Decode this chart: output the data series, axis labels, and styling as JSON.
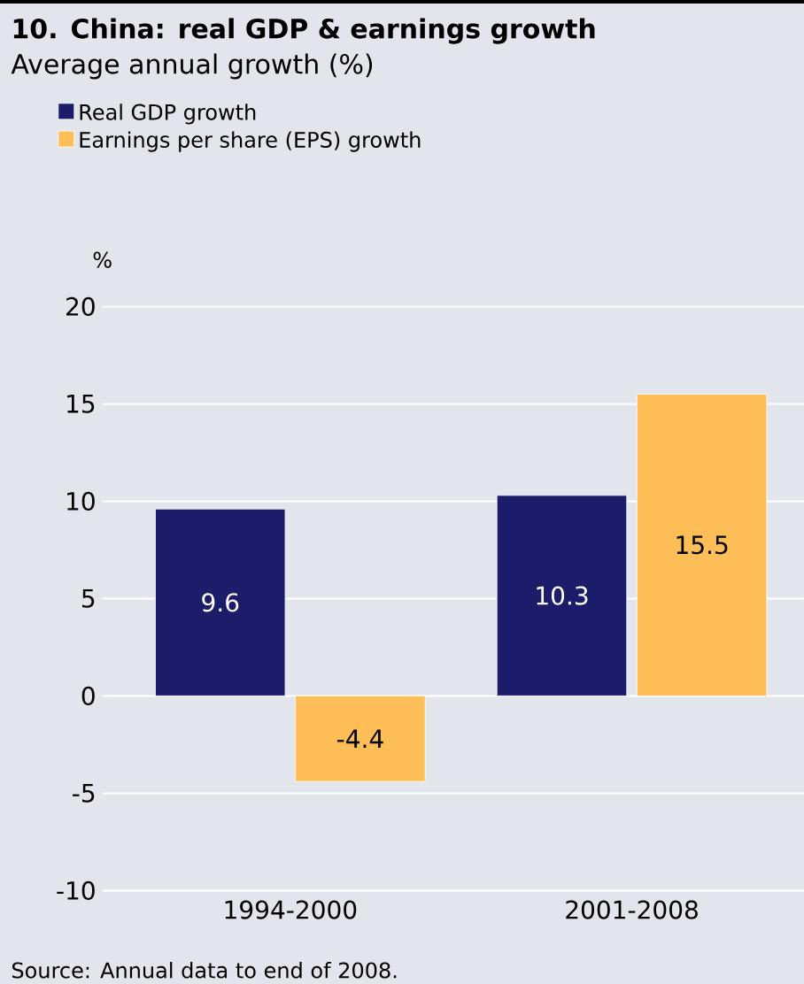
{
  "chart_data": {
    "type": "bar",
    "title": "10. China: real GDP & earnings growth",
    "subtitle": "Average annual growth (%)",
    "ylabel": "%",
    "categories": [
      "1994-2000",
      "2001-2008"
    ],
    "series": [
      {
        "name": "Real GDP growth",
        "color": "#1c1c6b",
        "values": [
          9.6,
          10.3
        ]
      },
      {
        "name": "Earnings per share (EPS) growth",
        "color": "#fdbe57",
        "values": [
          -4.4,
          15.5
        ]
      }
    ],
    "ylim": [
      -10,
      20
    ],
    "yticks": [
      -10,
      -5,
      0,
      5,
      10,
      15,
      20
    ],
    "grid": "y",
    "legend": "top left",
    "data_labels": true,
    "annotations": [
      "Source: Annual data to end of 2008."
    ]
  }
}
